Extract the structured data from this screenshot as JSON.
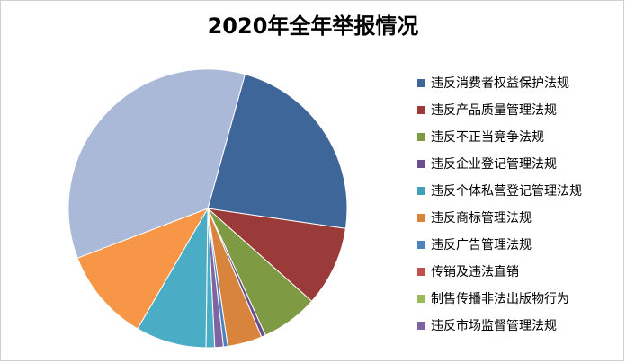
{
  "chart_data": {
    "type": "pie",
    "title": "2020年全年举报情况",
    "legend_position": "right",
    "slices": [
      {
        "name": "违反消费者权益保护法规",
        "value": 23.0,
        "color": "#3e6699"
      },
      {
        "name": "违反产品质量管理法规",
        "value": 9.3,
        "color": "#9a3b3a"
      },
      {
        "name": "违反不正当竞争法规",
        "value": 6.6,
        "color": "#7e9a43"
      },
      {
        "name": "违反企业登记管理法规",
        "value": 0.5,
        "color": "#6b4f8c"
      },
      {
        "name": "违反个体私营登记管理法规",
        "value": 0.0,
        "color": "#3fa0b8"
      },
      {
        "name": "违反商标管理法规",
        "value": 4.0,
        "color": "#d9843c"
      },
      {
        "name": "违反广告管理法规",
        "value": 0.5,
        "color": "#4f81bd"
      },
      {
        "name": "传销及违法直销",
        "value": 0.0,
        "color": "#c0504d"
      },
      {
        "name": "制售传播非法出版物行为",
        "value": 0.0,
        "color": "#9bbb59"
      },
      {
        "name": "违反市场监督管理法规",
        "value": 1.0,
        "color": "#8064a2"
      },
      {
        "name": "",
        "value": 1.0,
        "color": "#4bacc6",
        "legend": false
      },
      {
        "name": "",
        "value": 8.2,
        "color": "#4bacc6",
        "legend": false
      },
      {
        "name": "",
        "value": 10.8,
        "color": "#f79646",
        "legend": false
      },
      {
        "name": "",
        "value": 35.1,
        "color": "#aab9d8",
        "legend": false
      }
    ]
  }
}
